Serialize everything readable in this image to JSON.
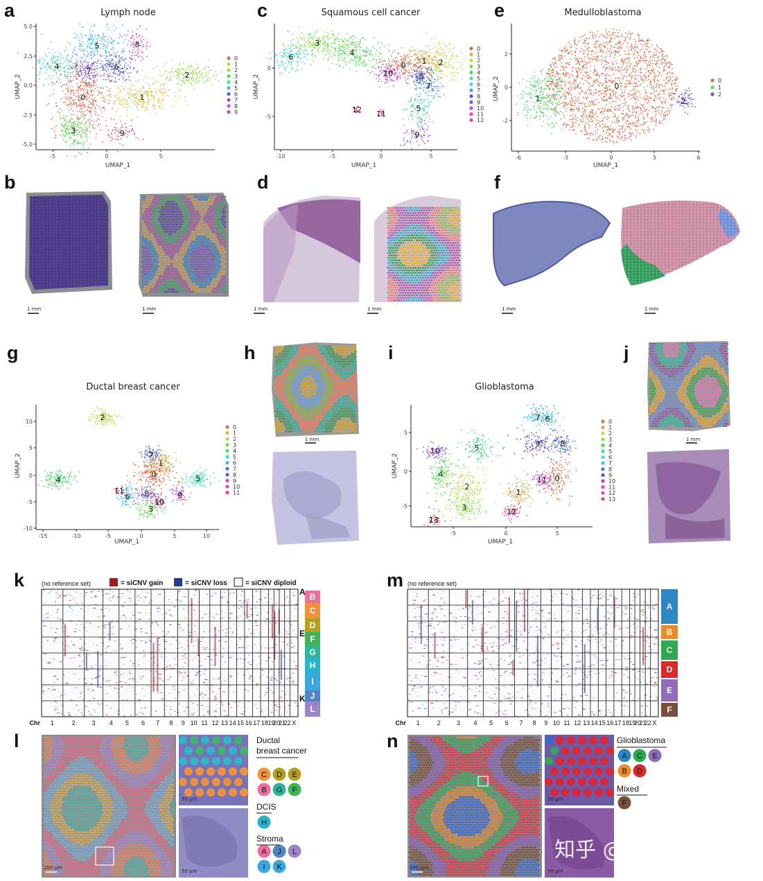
{
  "panels": {
    "a": {
      "letter": "a",
      "title": "Lymph node",
      "xlabel": "UMAP_1",
      "ylabel": "UMAP_2",
      "xticks": [
        "-5",
        "0",
        "5"
      ],
      "yticks": [
        "5.0",
        "2.5",
        "0.0",
        "-2.5",
        "-5.0"
      ],
      "legend": [
        "0",
        "1",
        "2",
        "3",
        "4",
        "5",
        "6",
        "7",
        "8",
        "9"
      ]
    },
    "b": {
      "letter": "b",
      "scale_left": "1 mm",
      "scale_right": "1 mm"
    },
    "c": {
      "letter": "c",
      "title": "Squamous cell cancer",
      "xlabel": "UMAP_1",
      "ylabel": "UMAP_2",
      "xticks": [
        "-10",
        "-5",
        "0",
        "5"
      ],
      "yticks": [
        "0",
        "-5"
      ],
      "legend": [
        "0",
        "1",
        "2",
        "3",
        "4",
        "5",
        "6",
        "7",
        "8",
        "9",
        "10",
        "11",
        "12"
      ]
    },
    "d": {
      "letter": "d",
      "scale_left": "1 mm",
      "scale_right": "1 mm"
    },
    "e": {
      "letter": "e",
      "title": "Medulloblastoma",
      "xlabel": "UMAP_1",
      "ylabel": "UMAP_2",
      "xticks": [
        "-6",
        "-3",
        "0",
        "3",
        "6"
      ],
      "yticks": [
        "2",
        "0",
        "-2"
      ],
      "legend": [
        "0",
        "1",
        "2"
      ]
    },
    "f": {
      "letter": "f",
      "scale_left": "1 mm",
      "scale_right": "1 mm"
    },
    "g": {
      "letter": "g",
      "title": "Ductal breast cancer",
      "xlabel": "UMAP_1",
      "ylabel": "UMAP_2",
      "xticks": [
        "-15",
        "-10",
        "-5",
        "0",
        "5",
        "10"
      ],
      "yticks": [
        "10",
        "5",
        "0",
        "-5",
        "-10"
      ],
      "legend": [
        "0",
        "1",
        "2",
        "3",
        "4",
        "5",
        "6",
        "7",
        "8",
        "9",
        "10",
        "11"
      ]
    },
    "h": {
      "letter": "h",
      "scale": "1 mm"
    },
    "i": {
      "letter": "i",
      "title": "Glioblastoma",
      "xlabel": "UMAP_1",
      "ylabel": "UMAP_2",
      "xticks": [
        "-5",
        "0",
        "5"
      ],
      "yticks": [
        "5",
        "0",
        "-5"
      ],
      "legend": [
        "0",
        "1",
        "2",
        "3",
        "4",
        "5",
        "6",
        "7",
        "8",
        "9",
        "10",
        "11",
        "12",
        "13"
      ]
    },
    "j": {
      "letter": "j",
      "scale": "1 mm"
    },
    "k": {
      "letter": "k",
      "note": "(no reference set)",
      "legend_gain": "= siCNV gain",
      "legend_loss": "= siCNV loss",
      "legend_diploid": "= siCNV diploid",
      "side_labels": [
        "A",
        "E",
        "K"
      ],
      "bands": [
        "B",
        "C",
        "D",
        "F",
        "G",
        "H",
        "I",
        "J",
        "L"
      ],
      "chr_label": "Chr",
      "chromosomes": [
        "1",
        "2",
        "3",
        "4",
        "5",
        "6",
        "7",
        "8",
        "9",
        "10",
        "11",
        "12",
        "13",
        "14",
        "15",
        "16",
        "17",
        "18",
        "19",
        "20",
        "21",
        "22",
        "X"
      ]
    },
    "m": {
      "letter": "m",
      "note": "(no reference set)",
      "bands": [
        "A",
        "B",
        "C",
        "D",
        "E",
        "F"
      ],
      "chr_label": "Chr",
      "chromosomes": [
        "1",
        "2",
        "3",
        "4",
        "5",
        "6",
        "7",
        "8",
        "9",
        "10",
        "11",
        "12",
        "13",
        "14",
        "15",
        "16",
        "17",
        "18",
        "19",
        "20",
        "21",
        "22",
        "X"
      ]
    },
    "l": {
      "letter": "l",
      "scale_main": "200 μm",
      "scale_zoom1": "50 μm",
      "scale_zoom2": "50 μm",
      "section_title_line1": "Ductal",
      "section_title_line2": "breast cancer",
      "row1": [
        "C",
        "D",
        "E"
      ],
      "row2": [
        "B",
        "G",
        "F"
      ],
      "dcis_title": "DCIS",
      "dcis": [
        "H"
      ],
      "stroma_title": "Stroma",
      "stroma_row1": [
        "A",
        "J",
        "L"
      ],
      "stroma_row2": [
        "I",
        "K"
      ]
    },
    "n": {
      "letter": "n",
      "scale_main": "200 μm",
      "scale_zoom1": "50 μm",
      "scale_zoom2": "50 μm",
      "section_title": "Glioblastoma",
      "row1": [
        "A",
        "C",
        "E"
      ],
      "row2": [
        "B",
        "D"
      ],
      "mixed_title": "Mixed",
      "mixed": [
        "F"
      ]
    }
  },
  "watermark": "知乎 @Evil Genius",
  "colors": {
    "pal10": [
      "#F8766D",
      "#D89000",
      "#A3A500",
      "#39B600",
      "#00BF7D",
      "#00BFC4",
      "#00B0F6",
      "#9590FF",
      "#E76BF3",
      "#FF62BC"
    ],
    "bands_k": {
      "B": "#ec6f9b",
      "C": "#f0913b",
      "D": "#b4a01e",
      "F": "#3fb35a",
      "G": "#2fb49b",
      "H": "#27b3c8",
      "I": "#3aa8df",
      "J": "#4f86c6",
      "L": "#9a86c8"
    },
    "bands_m": {
      "A": "#2f86c4",
      "B": "#ef8a2b",
      "C": "#2fa84f",
      "D": "#d82a2a",
      "E": "#8e6cb8",
      "F": "#7a4e3a"
    },
    "gain": "#9c1e1e",
    "loss": "#2b3b8f"
  }
}
